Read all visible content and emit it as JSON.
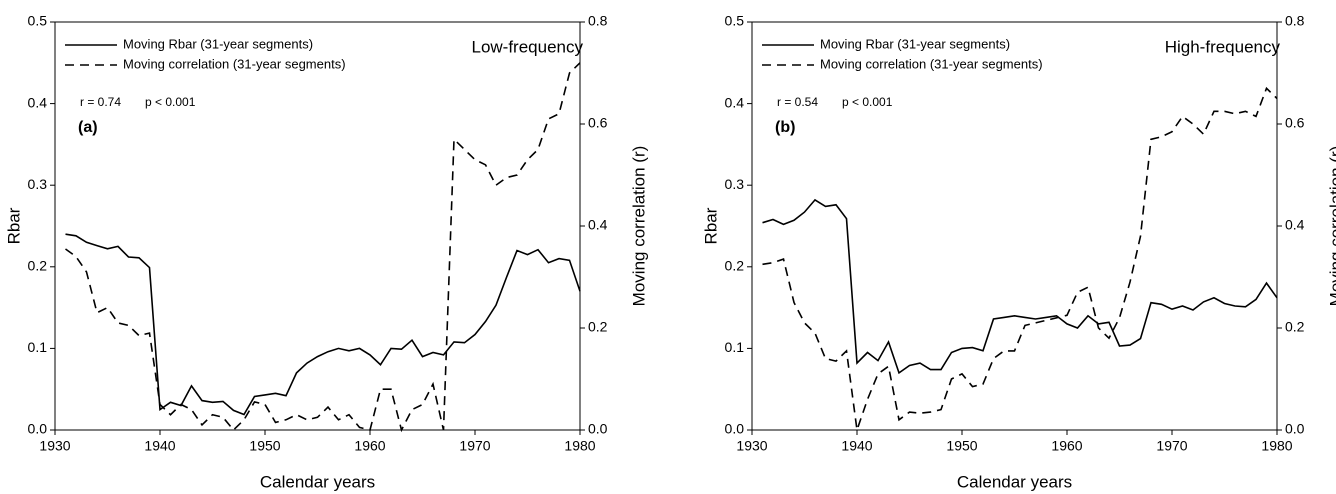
{
  "chart_data": [
    {
      "type": "line",
      "panel_label": "(a)",
      "frequency_label": "Low-frequency",
      "stat_r": "r = 0.74",
      "stat_p": "p < 0.001",
      "x_label": "Calendar years",
      "y_label": "Rbar",
      "y2_label": "Moving correlation (r)",
      "xlim": [
        1930,
        1980
      ],
      "xticks": [
        1930,
        1940,
        1950,
        1960,
        1970,
        1980
      ],
      "ylim": [
        0,
        0.5
      ],
      "yticks": [
        {
          "value": 0,
          "label": "0.0"
        },
        0.1,
        0.2,
        0.3,
        0.4,
        0.5
      ],
      "y2lim": [
        0,
        0.8
      ],
      "y2ticks": [
        {
          "value": 0,
          "label": "0.0"
        },
        0.2,
        0.4,
        0.6,
        0.8
      ],
      "x": [
        1931,
        1932,
        1933,
        1934,
        1935,
        1936,
        1937,
        1938,
        1939,
        1940,
        1941,
        1942,
        1943,
        1944,
        1945,
        1946,
        1947,
        1948,
        1949,
        1950,
        1951,
        1952,
        1953,
        1954,
        1955,
        1956,
        1957,
        1958,
        1959,
        1960,
        1961,
        1962,
        1963,
        1964,
        1965,
        1966,
        1967,
        1968,
        1969,
        1970,
        1971,
        1972,
        1973,
        1974,
        1975,
        1976,
        1977,
        1978,
        1979,
        1980
      ],
      "series": [
        {
          "name": "Moving Rbar (31-year segments)",
          "color": "#000000",
          "line_style": "solid",
          "axis": "y",
          "values": [
            0.24,
            0.238,
            0.23,
            0.226,
            0.222,
            0.225,
            0.212,
            0.211,
            0.199,
            0.025,
            0.034,
            0.03,
            0.054,
            0.036,
            0.034,
            0.035,
            0.024,
            0.019,
            0.041,
            0.043,
            0.045,
            0.042,
            0.07,
            0.082,
            0.09,
            0.096,
            0.1,
            0.097,
            0.1,
            0.092,
            0.08,
            0.1,
            0.099,
            0.11,
            0.09,
            0.095,
            0.092,
            0.108,
            0.107,
            0.117,
            0.133,
            0.153,
            0.187,
            0.22,
            0.215,
            0.221,
            0.205,
            0.21,
            0.208,
            0.17
          ]
        },
        {
          "name": "Moving correlation (31-year segments)",
          "color": "#000000",
          "line_style": "dashed",
          "axis": "y2",
          "values": [
            0.355,
            0.34,
            0.31,
            0.23,
            0.24,
            0.21,
            0.205,
            0.185,
            0.19,
            0.05,
            0.03,
            0.05,
            0.04,
            0.01,
            0.03,
            0.025,
            0.0,
            0.02,
            0.055,
            0.05,
            0.015,
            0.02,
            0.03,
            0.02,
            0.025,
            0.045,
            0.02,
            0.03,
            0.005,
            0.0,
            0.08,
            0.08,
            0.0,
            0.04,
            0.05,
            0.09,
            0.0,
            0.57,
            0.55,
            0.53,
            0.52,
            0.48,
            0.495,
            0.5,
            0.53,
            0.55,
            0.61,
            0.62,
            0.7,
            0.72
          ]
        }
      ]
    },
    {
      "type": "line",
      "panel_label": "(b)",
      "frequency_label": "High-frequency",
      "stat_r": "r = 0.54",
      "stat_p": "p < 0.001",
      "x_label": "Calendar years",
      "y_label": "Rbar",
      "y2_label": "Moving correlation (r)",
      "xlim": [
        1930,
        1980
      ],
      "xticks": [
        1930,
        1940,
        1950,
        1960,
        1970,
        1980
      ],
      "ylim": [
        0,
        0.5
      ],
      "yticks": [
        {
          "value": 0,
          "label": "0.0"
        },
        0.1,
        0.2,
        0.3,
        0.4,
        0.5
      ],
      "y2lim": [
        0,
        0.8
      ],
      "y2ticks": [
        {
          "value": 0,
          "label": "0.0"
        },
        0.2,
        0.4,
        0.6,
        0.8
      ],
      "x": [
        1931,
        1932,
        1933,
        1934,
        1935,
        1936,
        1937,
        1938,
        1939,
        1940,
        1941,
        1942,
        1943,
        1944,
        1945,
        1946,
        1947,
        1948,
        1949,
        1950,
        1951,
        1952,
        1953,
        1954,
        1955,
        1956,
        1957,
        1958,
        1959,
        1960,
        1961,
        1962,
        1963,
        1964,
        1965,
        1966,
        1967,
        1968,
        1969,
        1970,
        1971,
        1972,
        1973,
        1974,
        1975,
        1976,
        1977,
        1978,
        1979,
        1980
      ],
      "series": [
        {
          "name": "Moving Rbar (31-year segments)",
          "color": "#000000",
          "line_style": "solid",
          "axis": "y",
          "values": [
            0.254,
            0.258,
            0.252,
            0.257,
            0.267,
            0.282,
            0.274,
            0.276,
            0.259,
            0.082,
            0.095,
            0.085,
            0.108,
            0.07,
            0.079,
            0.082,
            0.074,
            0.074,
            0.095,
            0.1,
            0.101,
            0.097,
            0.136,
            0.138,
            0.14,
            0.138,
            0.136,
            0.138,
            0.14,
            0.13,
            0.125,
            0.14,
            0.13,
            0.132,
            0.103,
            0.104,
            0.112,
            0.156,
            0.154,
            0.148,
            0.152,
            0.147,
            0.157,
            0.162,
            0.155,
            0.152,
            0.151,
            0.16,
            0.18,
            0.162
          ]
        },
        {
          "name": "Moving correlation (31-year segments)",
          "color": "#000000",
          "line_style": "dashed",
          "axis": "y2",
          "values": [
            0.325,
            0.328,
            0.335,
            0.25,
            0.21,
            0.19,
            0.14,
            0.135,
            0.155,
            0.0,
            0.06,
            0.11,
            0.125,
            0.02,
            0.035,
            0.033,
            0.035,
            0.04,
            0.1,
            0.11,
            0.085,
            0.09,
            0.14,
            0.155,
            0.155,
            0.205,
            0.21,
            0.215,
            0.22,
            0.225,
            0.27,
            0.28,
            0.2,
            0.18,
            0.22,
            0.29,
            0.38,
            0.57,
            0.575,
            0.585,
            0.615,
            0.6,
            0.58,
            0.625,
            0.625,
            0.62,
            0.625,
            0.615,
            0.67,
            0.65
          ]
        }
      ]
    }
  ]
}
